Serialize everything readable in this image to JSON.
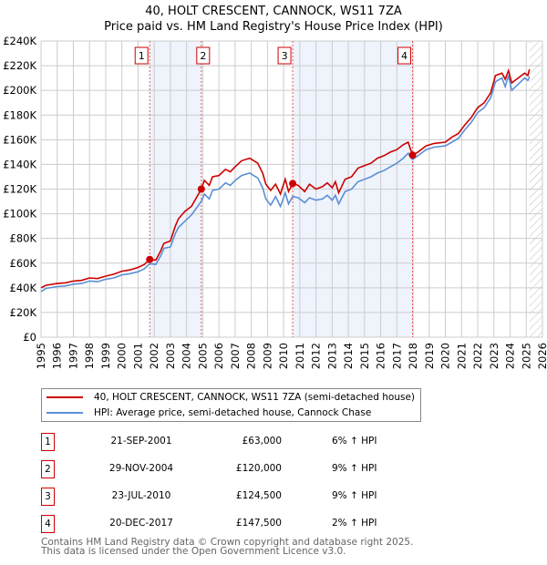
{
  "title": [
    "40, HOLT CRESCENT, CANNOCK, WS11 7ZA",
    "Price paid vs. HM Land Registry's House Price Index (HPI)"
  ],
  "chart_data": {
    "type": "line",
    "xlim": [
      1995,
      2026
    ],
    "ylim": [
      0,
      240000
    ],
    "yticks": [
      0,
      20000,
      40000,
      60000,
      80000,
      100000,
      120000,
      140000,
      160000,
      180000,
      200000,
      220000,
      240000
    ],
    "ytick_labels": [
      "£0",
      "£20K",
      "£40K",
      "£60K",
      "£80K",
      "£100K",
      "£120K",
      "£140K",
      "£160K",
      "£180K",
      "£200K",
      "£220K",
      "£240K"
    ],
    "xticks": [
      1995,
      1996,
      1997,
      1998,
      1999,
      2000,
      2001,
      2002,
      2003,
      2004,
      2005,
      2006,
      2007,
      2008,
      2009,
      2010,
      2011,
      2012,
      2013,
      2014,
      2015,
      2016,
      2017,
      2018,
      2019,
      2020,
      2021,
      2022,
      2023,
      2024,
      2025,
      2026
    ],
    "grid": true,
    "forecast_hatch_from": 2025.2,
    "shaded_spans": [
      [
        2001.72,
        2004.91
      ],
      [
        2010.56,
        2017.97
      ]
    ],
    "series": [
      {
        "name": "40, HOLT CRESCENT, CANNOCK, WS11 7ZA (semi-detached house)",
        "color": "#cc0000",
        "x": [
          1995,
          1995.3,
          1996,
          1996.5,
          1997,
          1997.5,
          1998,
          1998.5,
          1999,
          1999.5,
          2000,
          2000.5,
          2001,
          2001.4,
          2001.72,
          2002.1,
          2002.4,
          2002.6,
          2003,
          2003.3,
          2003.5,
          2003.9,
          2004.3,
          2004.91,
          2005.1,
          2005.4,
          2005.6,
          2006,
          2006.4,
          2006.7,
          2007,
          2007.4,
          2007.9,
          2008.4,
          2008.7,
          2008.9,
          2009.2,
          2009.5,
          2009.8,
          2010.1,
          2010.3,
          2010.56,
          2010.9,
          2011.3,
          2011.6,
          2012,
          2012.4,
          2012.7,
          2013,
          2013.2,
          2013.4,
          2013.8,
          2014.2,
          2014.6,
          2015,
          2015.4,
          2015.8,
          2016.2,
          2016.6,
          2017,
          2017.4,
          2017.7,
          2017.97,
          2018.3,
          2018.8,
          2019.3,
          2020,
          2020.4,
          2020.8,
          2021.2,
          2021.6,
          2022,
          2022.4,
          2022.8,
          2023.1,
          2023.5,
          2023.7,
          2023.9,
          2024.1,
          2024.5,
          2024.9,
          2025.1,
          2025.2
        ],
        "y": [
          40000,
          42000,
          43500,
          44000,
          45500,
          46000,
          48000,
          47500,
          49500,
          51000,
          53500,
          54500,
          56500,
          59000,
          63000,
          62500,
          70000,
          76000,
          78000,
          90000,
          96000,
          102000,
          106000,
          120000,
          127000,
          123000,
          130000,
          131000,
          136000,
          134000,
          138000,
          143000,
          145000,
          141000,
          133000,
          124000,
          119000,
          124000,
          116000,
          128000,
          118000,
          124500,
          123000,
          118000,
          124000,
          120000,
          122000,
          125000,
          121000,
          126000,
          117000,
          128000,
          130000,
          137000,
          139000,
          141000,
          145000,
          147000,
          150000,
          152000,
          156000,
          158000,
          147500,
          150000,
          155000,
          157000,
          158000,
          162000,
          165000,
          172000,
          178000,
          186000,
          190000,
          198000,
          212000,
          214000,
          209000,
          216000,
          206000,
          210000,
          214000,
          212000,
          217000
        ]
      },
      {
        "name": "HPI: Average price, semi-detached house, Cannock Chase",
        "color": "#5b8fd4",
        "x": [
          1995,
          1995.3,
          1996,
          1996.5,
          1997,
          1997.5,
          1998,
          1998.5,
          1999,
          1999.5,
          2000,
          2000.5,
          2001,
          2001.4,
          2001.72,
          2002.1,
          2002.4,
          2002.6,
          2003,
          2003.3,
          2003.5,
          2003.9,
          2004.3,
          2004.91,
          2005.1,
          2005.4,
          2005.6,
          2006,
          2006.4,
          2006.7,
          2007,
          2007.4,
          2007.9,
          2008.4,
          2008.7,
          2008.9,
          2009.2,
          2009.5,
          2009.8,
          2010.1,
          2010.3,
          2010.56,
          2010.9,
          2011.3,
          2011.6,
          2012,
          2012.4,
          2012.7,
          2013,
          2013.2,
          2013.4,
          2013.8,
          2014.2,
          2014.6,
          2015,
          2015.4,
          2015.8,
          2016.2,
          2016.6,
          2017,
          2017.4,
          2017.7,
          2017.97,
          2018.3,
          2018.8,
          2019.3,
          2020,
          2020.4,
          2020.8,
          2021.2,
          2021.6,
          2022,
          2022.4,
          2022.8,
          2023.1,
          2023.5,
          2023.7,
          2023.9,
          2024.1,
          2024.5,
          2024.9,
          2025.1,
          2025.2
        ],
        "y": [
          37000,
          39500,
          41000,
          41500,
          43000,
          43500,
          45500,
          45000,
          47000,
          48000,
          50500,
          51500,
          53000,
          55500,
          59500,
          59000,
          66000,
          72000,
          73000,
          84000,
          89000,
          94000,
          99000,
          110000,
          116000,
          112000,
          119000,
          120000,
          125000,
          123000,
          127000,
          131000,
          133000,
          129000,
          121000,
          112000,
          107000,
          114000,
          106000,
          117000,
          108000,
          114000,
          113000,
          109000,
          113000,
          111000,
          112000,
          115000,
          111000,
          115000,
          108000,
          118000,
          120000,
          126000,
          128000,
          130000,
          133000,
          135000,
          138000,
          141000,
          145000,
          149000,
          144000,
          147000,
          152000,
          154000,
          155000,
          158000,
          161000,
          168000,
          174000,
          182000,
          186000,
          194000,
          207000,
          210000,
          203000,
          212000,
          200000,
          205000,
          210000,
          208000,
          211000
        ]
      }
    ],
    "markers": [
      {
        "label": "1",
        "x": 2001.72,
        "y": 63000
      },
      {
        "label": "2",
        "x": 2004.91,
        "y": 120000
      },
      {
        "label": "3",
        "x": 2010.56,
        "y": 124500
      },
      {
        "label": "4",
        "x": 2017.97,
        "y": 147500
      }
    ]
  },
  "legend": {
    "items": [
      "40, HOLT CRESCENT, CANNOCK, WS11 7ZA (semi-detached house)",
      "HPI: Average price, semi-detached house, Cannock Chase"
    ]
  },
  "transactions": [
    {
      "n": "1",
      "date": "21-SEP-2001",
      "price": "£63,000",
      "hpi": "6% ↑ HPI"
    },
    {
      "n": "2",
      "date": "29-NOV-2004",
      "price": "£120,000",
      "hpi": "9% ↑ HPI"
    },
    {
      "n": "3",
      "date": "23-JUL-2010",
      "price": "£124,500",
      "hpi": "9% ↑ HPI"
    },
    {
      "n": "4",
      "date": "20-DEC-2017",
      "price": "£147,500",
      "hpi": "2% ↑ HPI"
    }
  ],
  "footer": [
    "Contains HM Land Registry data © Crown copyright and database right 2025.",
    "This data is licensed under the Open Government Licence v3.0."
  ]
}
